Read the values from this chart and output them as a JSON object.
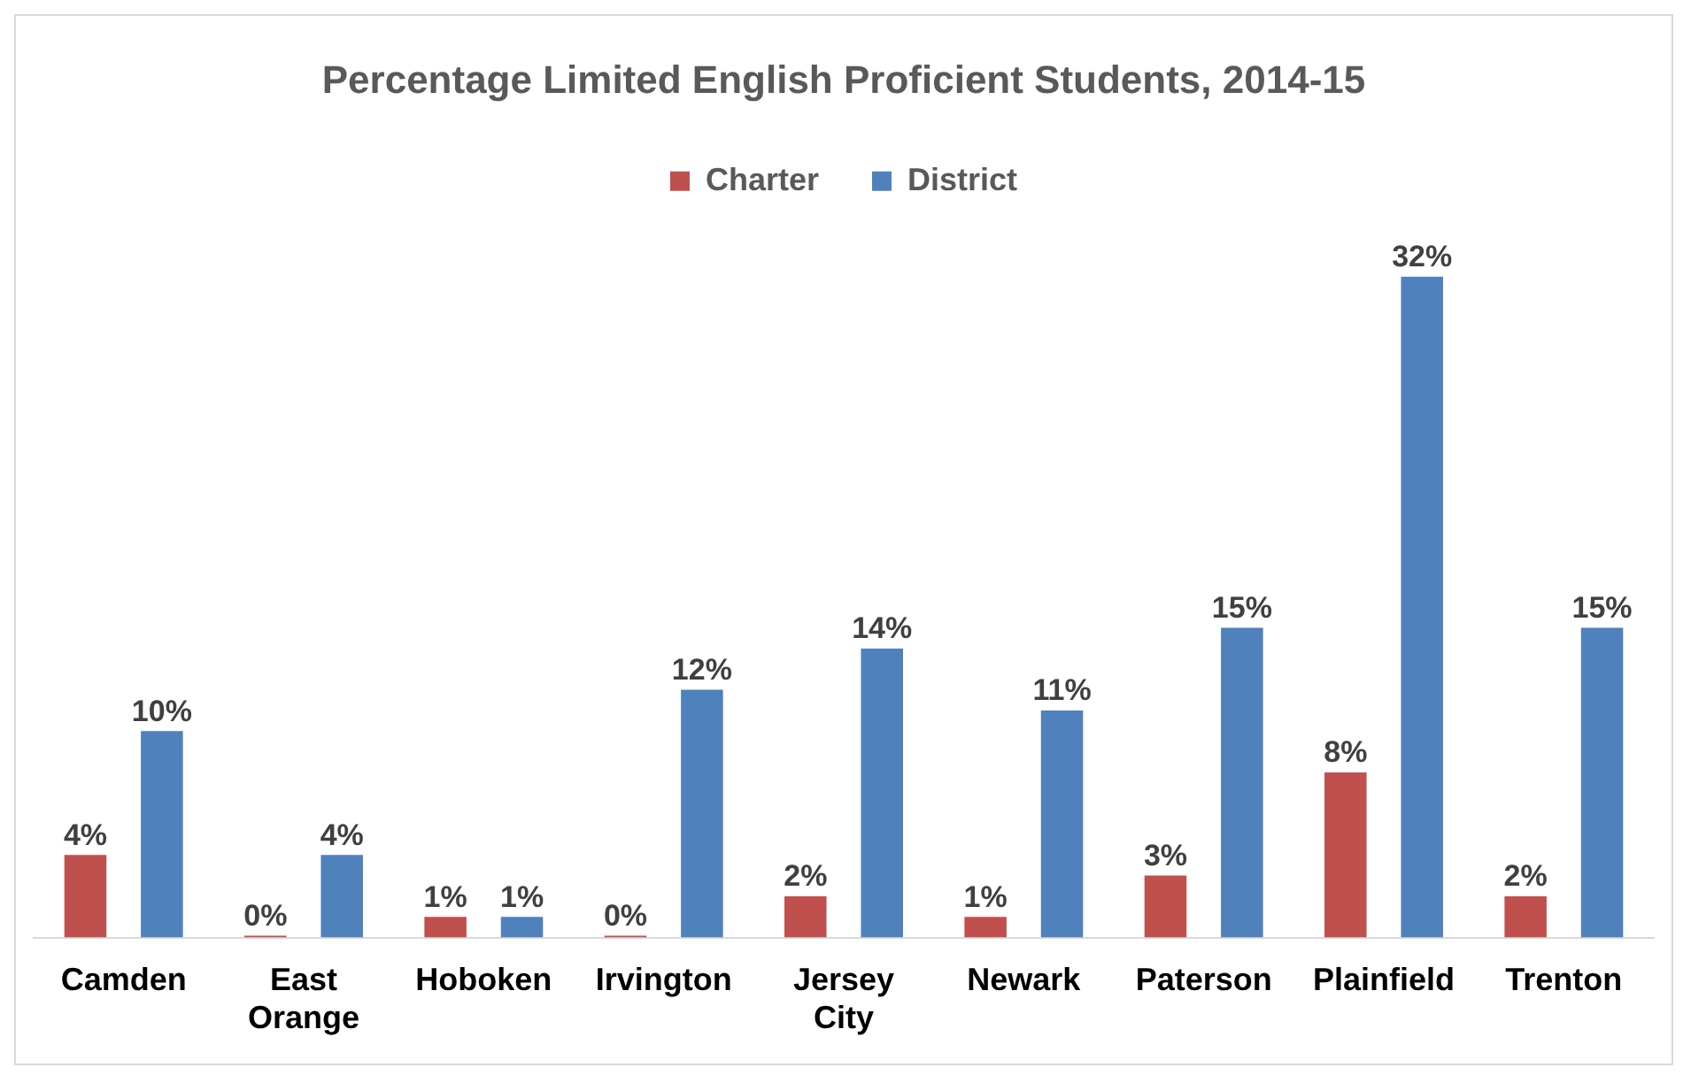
{
  "chart_data": {
    "type": "bar",
    "title": "Percentage Limited English Proficient Students, 2014-15",
    "categories": [
      "Camden",
      "East Orange",
      "Hoboken",
      "Irvington",
      "Jersey City",
      "Newark",
      "Paterson",
      "Plainfield",
      "Trenton"
    ],
    "series": [
      {
        "name": "Charter",
        "color": "#c0504d",
        "values": [
          4,
          0,
          1,
          0,
          2,
          1,
          3,
          8,
          2
        ],
        "value_labels": [
          "4%",
          "0%",
          "1%",
          "0%",
          "2%",
          "1%",
          "3%",
          "8%",
          "2%"
        ]
      },
      {
        "name": "District",
        "color": "#4f81bd",
        "values": [
          10,
          4,
          1,
          12,
          14,
          11,
          15,
          32,
          15
        ],
        "value_labels": [
          "10%",
          "4%",
          "1%",
          "12%",
          "14%",
          "11%",
          "15%",
          "32%",
          "15%"
        ]
      }
    ],
    "grid": false,
    "legend": "top"
  }
}
